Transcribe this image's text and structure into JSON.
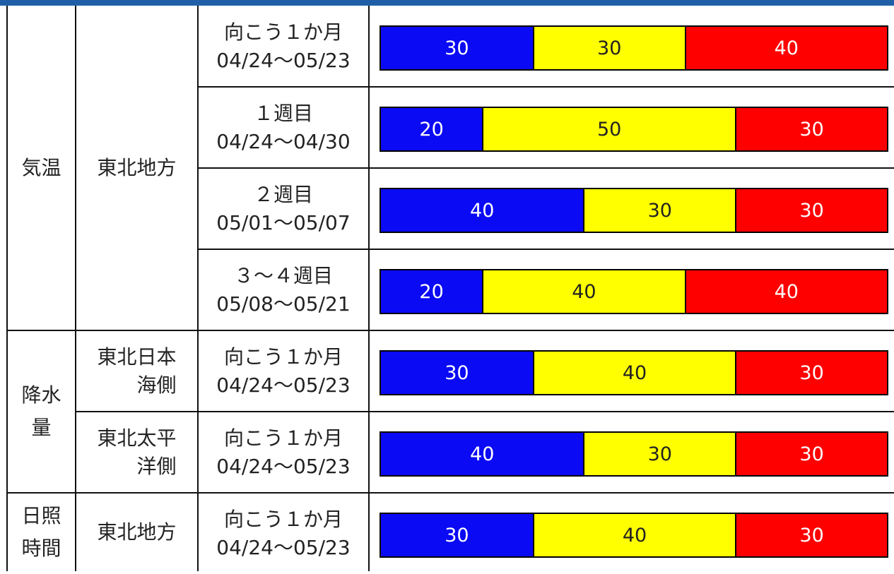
{
  "colors": {
    "below": "#0a0af5",
    "normal": "#ffff00",
    "above": "#ff0000",
    "header_bar": "#1f5fa8"
  },
  "groups": [
    {
      "element_label": "気温",
      "areas": [
        {
          "label": "東北地方",
          "row_span": 4
        }
      ]
    },
    {
      "element_label": "降水量",
      "areas": [
        {
          "label": "東北日本海側",
          "row_span": 1
        },
        {
          "label": "東北太平洋側",
          "row_span": 1
        }
      ]
    },
    {
      "element_label": "日照時間",
      "areas": [
        {
          "label": "東北地方",
          "row_span": 1
        }
      ]
    }
  ],
  "chart_data": {
    "type": "bar",
    "stacked": true,
    "unit": "%",
    "rows": [
      {
        "element": "気温",
        "area": "東北地方",
        "period": "向こう１か月",
        "dates": "04/24～05/23",
        "values": [
          30,
          30,
          40
        ]
      },
      {
        "element": "気温",
        "area": "東北地方",
        "period": "１週目",
        "dates": "04/24～04/30",
        "values": [
          20,
          50,
          30
        ]
      },
      {
        "element": "気温",
        "area": "東北地方",
        "period": "２週目",
        "dates": "05/01～05/07",
        "values": [
          40,
          30,
          30
        ]
      },
      {
        "element": "気温",
        "area": "東北地方",
        "period": "３～４週目",
        "dates": "05/08～05/21",
        "values": [
          20,
          40,
          40
        ]
      },
      {
        "element": "降水量",
        "area": "東北日本海側",
        "period": "向こう１か月",
        "dates": "04/24～05/23",
        "values": [
          30,
          40,
          30
        ]
      },
      {
        "element": "降水量",
        "area": "東北太平洋側",
        "period": "向こう１か月",
        "dates": "04/24～05/23",
        "values": [
          40,
          30,
          30
        ]
      },
      {
        "element": "日照時間",
        "area": "東北地方",
        "period": "向こう１か月",
        "dates": "04/24～05/23",
        "values": [
          30,
          40,
          30
        ]
      }
    ]
  }
}
